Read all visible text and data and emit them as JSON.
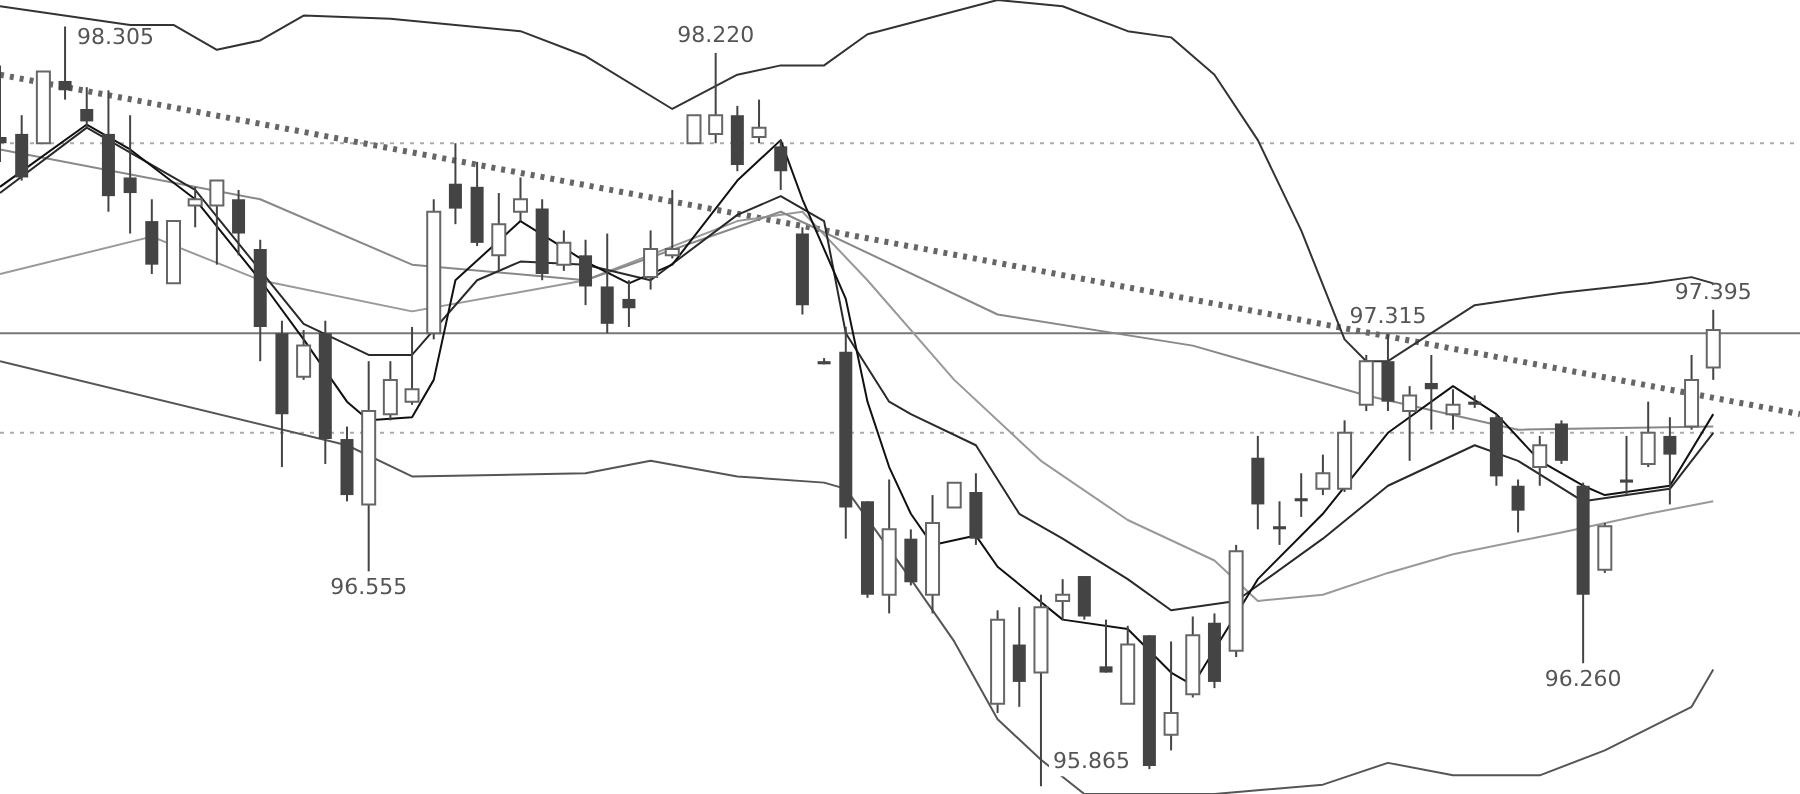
{
  "chart_data": {
    "type": "candlestick",
    "categories": [
      null,
      null,
      null,
      null,
      null,
      null,
      null,
      null,
      null,
      null,
      null,
      null,
      null,
      null,
      null,
      null,
      null,
      null,
      null,
      null,
      null,
      null,
      null,
      null,
      null,
      null,
      null,
      null,
      null,
      null,
      null,
      null,
      null,
      null,
      null,
      null,
      null,
      null,
      null,
      null,
      null,
      null,
      null,
      null,
      null,
      null,
      null,
      null,
      null,
      null,
      null,
      null,
      null,
      null,
      null,
      null,
      null,
      null,
      null,
      null,
      null,
      null,
      null,
      null,
      null,
      null,
      null,
      null,
      null,
      null,
      null,
      null,
      null,
      null,
      null,
      null,
      null,
      null,
      null,
      null,
      null,
      null,
      null,
      null
    ],
    "ohlc": [
      [
        97.95,
        98.18,
        97.87,
        97.93
      ],
      [
        97.96,
        98.02,
        97.81,
        97.82
      ],
      [
        97.93,
        98.16,
        97.93,
        98.16
      ],
      [
        98.13,
        98.305,
        98.07,
        98.1
      ],
      [
        98.04,
        98.11,
        97.98,
        98.0
      ],
      [
        97.96,
        98.1,
        97.71,
        97.76
      ],
      [
        97.82,
        98.02,
        97.64,
        97.77
      ],
      [
        97.68,
        97.75,
        97.51,
        97.54
      ],
      [
        97.48,
        97.68,
        97.48,
        97.68
      ],
      [
        97.73,
        97.79,
        97.66,
        97.75
      ],
      [
        97.73,
        97.81,
        97.54,
        97.81
      ],
      [
        97.75,
        97.78,
        97.57,
        97.64
      ],
      [
        97.59,
        97.62,
        97.23,
        97.34
      ],
      [
        97.32,
        97.36,
        96.89,
        97.06
      ],
      [
        97.18,
        97.33,
        97.17,
        97.28
      ],
      [
        97.32,
        97.36,
        96.9,
        96.98
      ],
      [
        96.98,
        97.02,
        96.78,
        96.8
      ],
      [
        96.77,
        97.23,
        96.555,
        97.07
      ],
      [
        97.06,
        97.23,
        97.04,
        97.17
      ],
      [
        97.1,
        97.34,
        97.09,
        97.14
      ],
      [
        97.32,
        97.75,
        97.3,
        97.71
      ],
      [
        97.8,
        97.93,
        97.67,
        97.72
      ],
      [
        97.79,
        97.87,
        97.6,
        97.61
      ],
      [
        97.57,
        97.77,
        97.52,
        97.67
      ],
      [
        97.71,
        97.82,
        97.68,
        97.75
      ],
      [
        97.72,
        97.75,
        97.49,
        97.51
      ],
      [
        97.54,
        97.65,
        97.52,
        97.61
      ],
      [
        97.57,
        97.62,
        97.41,
        97.47
      ],
      [
        97.47,
        97.64,
        97.32,
        97.35
      ],
      [
        97.43,
        97.49,
        97.34,
        97.4
      ],
      [
        97.5,
        97.65,
        97.46,
        97.59
      ],
      [
        97.57,
        97.78,
        97.56,
        97.59
      ],
      [
        97.93,
        98.02,
        97.93,
        98.02
      ],
      [
        97.96,
        98.22,
        97.93,
        98.02
      ],
      [
        98.02,
        98.05,
        97.84,
        97.86
      ],
      [
        97.95,
        98.07,
        97.93,
        97.98
      ],
      [
        97.92,
        97.94,
        97.78,
        97.84
      ],
      [
        97.64,
        97.66,
        97.38,
        97.41
      ],
      [
        97.23,
        97.24,
        97.22,
        97.22
      ],
      [
        97.26,
        97.34,
        96.66,
        96.76
      ],
      [
        96.78,
        96.78,
        96.47,
        96.48
      ],
      [
        96.48,
        96.85,
        96.42,
        96.69
      ],
      [
        96.66,
        96.69,
        96.51,
        96.52
      ],
      [
        96.48,
        96.8,
        96.42,
        96.71
      ],
      [
        96.76,
        96.84,
        96.76,
        96.84
      ],
      [
        96.81,
        96.87,
        96.64,
        96.66
      ],
      [
        96.13,
        96.43,
        96.1,
        96.4
      ],
      [
        96.32,
        96.44,
        96.12,
        96.2
      ],
      [
        96.23,
        96.48,
        95.865,
        96.44
      ],
      [
        96.46,
        96.53,
        96.4,
        96.48
      ],
      [
        96.54,
        96.54,
        96.4,
        96.41
      ],
      [
        96.25,
        96.4,
        96.23,
        96.23
      ],
      [
        96.13,
        96.38,
        96.13,
        96.32
      ],
      [
        96.35,
        96.35,
        95.92,
        95.93
      ],
      [
        96.03,
        96.33,
        95.98,
        96.1
      ],
      [
        96.16,
        96.41,
        96.15,
        96.35
      ],
      [
        96.39,
        96.42,
        96.18,
        96.2
      ],
      [
        96.3,
        96.64,
        96.28,
        96.62
      ],
      [
        96.92,
        96.99,
        96.69,
        96.77
      ],
      [
        96.7,
        96.78,
        96.64,
        96.69
      ],
      [
        96.79,
        96.87,
        96.73,
        96.78
      ],
      [
        96.82,
        96.93,
        96.8,
        96.87
      ],
      [
        96.82,
        97.04,
        96.81,
        97.0
      ],
      [
        97.09,
        97.25,
        97.07,
        97.23
      ],
      [
        97.23,
        97.315,
        97.07,
        97.1
      ],
      [
        97.07,
        97.15,
        96.91,
        97.12
      ],
      [
        97.16,
        97.25,
        97.01,
        97.14
      ],
      [
        97.06,
        97.14,
        97.01,
        97.09
      ],
      [
        97.1,
        97.12,
        97.08,
        97.09
      ],
      [
        97.05,
        97.06,
        96.83,
        96.86
      ],
      [
        96.83,
        96.85,
        96.68,
        96.75
      ],
      [
        96.89,
        96.99,
        96.83,
        96.96
      ],
      [
        97.03,
        97.04,
        96.9,
        96.91
      ],
      [
        96.83,
        96.84,
        96.26,
        96.48
      ],
      [
        96.56,
        96.71,
        96.55,
        96.7
      ],
      [
        96.85,
        96.99,
        96.8,
        96.84
      ],
      [
        96.9,
        97.1,
        96.89,
        97.0
      ],
      [
        96.99,
        97.05,
        96.77,
        96.93
      ],
      [
        97.02,
        97.25,
        97.01,
        97.17
      ],
      [
        97.21,
        97.395,
        97.17,
        97.33
      ],
      null,
      null,
      null,
      null
    ],
    "series": [
      {
        "type": "line",
        "color": "#111111",
        "values": [
          97.79,
          null,
          null,
          null,
          97.99,
          null,
          97.91,
          null,
          null,
          97.75,
          null,
          null,
          97.49,
          null,
          97.3,
          null,
          97.1,
          97.04,
          null,
          97.05,
          97.17,
          97.49,
          null,
          null,
          97.68,
          null,
          null,
          97.55,
          null,
          97.48,
          null,
          97.54,
          null,
          null,
          97.81,
          null,
          97.94,
          97.75,
          null,
          97.43,
          97.1,
          96.89,
          96.74,
          96.64,
          null,
          96.67,
          96.57,
          null,
          null,
          96.4,
          null,
          null,
          96.37,
          null,
          96.23,
          96.19,
          null,
          null,
          96.53,
          null,
          null,
          96.74,
          null,
          null,
          97.0,
          null,
          null,
          97.15,
          null,
          97.06,
          null,
          96.91,
          null,
          96.83,
          96.8,
          null,
          null,
          96.83,
          null,
          97.06,
          null,
          null,
          null,
          null
        ]
      },
      {
        "type": "line",
        "color": "#2a2a2a",
        "values": [
          97.77,
          null,
          null,
          null,
          97.98,
          null,
          null,
          null,
          null,
          97.78,
          null,
          null,
          null,
          null,
          97.35,
          null,
          null,
          97.25,
          null,
          97.25,
          null,
          null,
          97.49,
          null,
          97.55,
          null,
          null,
          97.54,
          null,
          null,
          97.49,
          null,
          null,
          null,
          97.7,
          null,
          97.76,
          null,
          97.68,
          97.32,
          null,
          97.1,
          97.06,
          null,
          null,
          96.96,
          null,
          96.74,
          null,
          96.66,
          null,
          null,
          96.53,
          null,
          96.43,
          null,
          null,
          96.46,
          null,
          null,
          null,
          96.66,
          null,
          null,
          96.83,
          null,
          null,
          null,
          96.96,
          null,
          96.91,
          null,
          null,
          96.78,
          null,
          null,
          null,
          96.82,
          null,
          97.0,
          null,
          null,
          null,
          null
        ]
      },
      {
        "type": "line",
        "color": "#888888",
        "values": [
          97.91,
          null,
          null,
          null,
          null,
          null,
          null,
          null,
          null,
          null,
          null,
          null,
          97.75,
          null,
          null,
          null,
          null,
          null,
          null,
          97.54,
          null,
          null,
          null,
          null,
          null,
          null,
          null,
          97.49,
          null,
          null,
          null,
          null,
          null,
          null,
          null,
          null,
          97.71,
          null,
          null,
          null,
          null,
          null,
          null,
          null,
          null,
          null,
          97.38,
          null,
          null,
          null,
          null,
          null,
          null,
          null,
          null,
          97.28,
          null,
          null,
          null,
          null,
          null,
          null,
          null,
          97.12,
          null,
          null,
          null,
          null,
          null,
          null,
          97.01,
          null,
          null,
          null,
          null,
          null,
          null,
          null,
          null,
          97.02,
          null,
          null,
          null,
          null
        ]
      },
      {
        "type": "line",
        "color": "#999999",
        "values": [
          97.51,
          null,
          null,
          null,
          null,
          null,
          null,
          97.63,
          null,
          null,
          null,
          null,
          97.49,
          null,
          null,
          null,
          null,
          null,
          null,
          97.39,
          null,
          null,
          null,
          null,
          null,
          null,
          null,
          97.49,
          null,
          null,
          null,
          null,
          null,
          null,
          97.68,
          null,
          null,
          97.71,
          null,
          null,
          97.49,
          null,
          null,
          null,
          97.17,
          null,
          null,
          null,
          96.91,
          null,
          null,
          null,
          96.72,
          null,
          null,
          null,
          96.59,
          null,
          96.46,
          null,
          null,
          96.48,
          null,
          null,
          96.55,
          null,
          null,
          96.61,
          null,
          null,
          null,
          null,
          96.68,
          null,
          null,
          null,
          96.74,
          null,
          null,
          96.78,
          null,
          null,
          null,
          null
        ]
      },
      {
        "type": "line",
        "color": "#333333",
        "values": [
          98.37,
          null,
          null,
          null,
          null,
          null,
          98.31,
          null,
          98.31,
          null,
          98.23,
          null,
          98.26,
          null,
          98.34,
          null,
          null,
          null,
          98.33,
          null,
          null,
          null,
          null,
          null,
          98.29,
          null,
          null,
          98.21,
          null,
          null,
          null,
          98.04,
          null,
          null,
          98.15,
          null,
          98.18,
          null,
          98.18,
          null,
          98.28,
          null,
          null,
          null,
          null,
          null,
          98.39,
          null,
          null,
          98.37,
          null,
          null,
          98.29,
          null,
          98.27,
          null,
          98.15,
          null,
          97.94,
          null,
          97.65,
          null,
          97.3,
          97.23,
          97.23,
          null,
          null,
          null,
          97.41,
          null,
          null,
          null,
          97.45,
          null,
          null,
          null,
          97.48,
          null,
          97.5,
          97.48,
          null,
          null,
          null,
          null
        ]
      },
      {
        "type": "line",
        "color": "#555555",
        "values": [
          97.23,
          null,
          null,
          null,
          null,
          null,
          null,
          null,
          null,
          null,
          null,
          null,
          null,
          null,
          null,
          null,
          96.96,
          null,
          null,
          96.86,
          null,
          null,
          null,
          null,
          null,
          null,
          null,
          96.87,
          null,
          null,
          96.91,
          null,
          null,
          null,
          96.86,
          null,
          null,
          null,
          96.84,
          96.82,
          null,
          null,
          96.53,
          null,
          96.33,
          null,
          96.08,
          null,
          95.95,
          null,
          95.84,
          null,
          null,
          null,
          null,
          null,
          95.84,
          null,
          null,
          null,
          null,
          95.87,
          null,
          null,
          95.94,
          null,
          null,
          95.9,
          null,
          null,
          null,
          95.9,
          null,
          null,
          95.98,
          null,
          null,
          null,
          96.12,
          96.24,
          null,
          null,
          null,
          null
        ]
      },
      {
        "type": "line",
        "color": "#666666",
        "line_style": "dotted",
        "values": [
          98.15,
          null,
          null,
          null,
          null,
          null,
          null,
          null,
          null,
          null,
          null,
          null,
          null,
          null,
          null,
          null,
          null,
          null,
          null,
          null,
          null,
          null,
          null,
          null,
          null,
          null,
          null,
          null,
          null,
          null,
          null,
          null,
          null,
          null,
          null,
          null,
          null,
          null,
          null,
          null,
          null,
          null,
          null,
          null,
          null,
          null,
          null,
          null,
          null,
          null,
          null,
          null,
          null,
          null,
          null,
          null,
          null,
          null,
          null,
          null,
          null,
          null,
          null,
          null,
          null,
          null,
          null,
          null,
          null,
          null,
          null,
          null,
          null,
          null,
          null,
          null,
          null,
          null,
          null,
          null,
          null,
          null,
          null,
          97.06
        ]
      }
    ],
    "tick_labels": false,
    "ref_lines": [
      {
        "axis": "y",
        "value": 97.93,
        "color": "#aaaaaa",
        "line_style": "dotted"
      },
      {
        "axis": "y",
        "value": 97.32,
        "color": "#777777",
        "line_style": "solid"
      },
      {
        "axis": "y",
        "value": 97.0,
        "color": "#aaaaaa",
        "line_style": "dotted"
      }
    ],
    "annotations": [
      {
        "text": "98.305",
        "y": 98.305
      },
      {
        "text": "98.220",
        "y": 98.22
      },
      {
        "text": "96.555",
        "y": 96.555
      },
      {
        "text": "95.865",
        "y": 95.865
      },
      {
        "text": "97.315",
        "y": 97.315
      },
      {
        "text": "96.260",
        "y": 96.26
      },
      {
        "text": "97.395",
        "y": 97.395
      }
    ]
  }
}
